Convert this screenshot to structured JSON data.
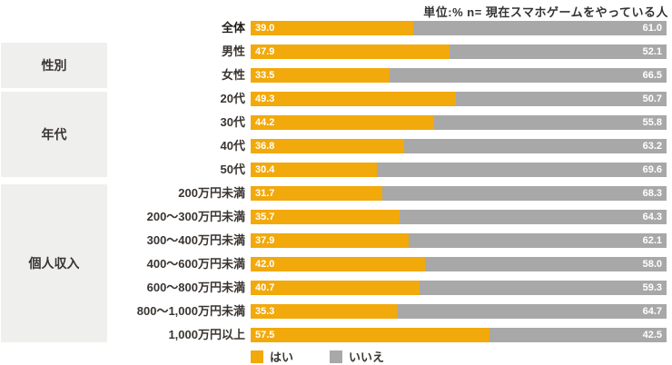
{
  "unit_note": "単位:%  n= 現在スマホゲームをやっている人",
  "legend": {
    "yes_label": "はい",
    "no_label": "いいえ"
  },
  "colors": {
    "yes": "#f2a90c",
    "no": "#a8a8a8",
    "group_box_bg": "#efefed",
    "value_text": "#ffffff"
  },
  "chart_data": {
    "type": "bar",
    "orientation": "horizontal",
    "stacked": true,
    "unit": "%",
    "title": "単位:%  n= 現在スマホゲームをやっている人",
    "xlim": [
      0,
      100
    ],
    "legend_position": "bottom",
    "grid": false,
    "series_names": [
      "はい",
      "いいえ"
    ],
    "categories": [
      "全体",
      "男性",
      "女性",
      "20代",
      "30代",
      "40代",
      "50代",
      "200万円未満",
      "200〜300万円未満",
      "300〜400万円未満",
      "400〜600万円未満",
      "600〜800万円未満",
      "800〜1,000万円未満",
      "1,000万円以上"
    ],
    "rows": [
      {
        "label": "全体",
        "yes": 39.0,
        "no": 61.0,
        "emphasis": true
      },
      {
        "label": "男性",
        "yes": 47.9,
        "no": 52.1
      },
      {
        "label": "女性",
        "yes": 33.5,
        "no": 66.5
      },
      {
        "label": "20代",
        "yes": 49.3,
        "no": 50.7
      },
      {
        "label": "30代",
        "yes": 44.2,
        "no": 55.8
      },
      {
        "label": "40代",
        "yes": 36.8,
        "no": 63.2
      },
      {
        "label": "50代",
        "yes": 30.4,
        "no": 69.6
      },
      {
        "label": "200万円未満",
        "yes": 31.7,
        "no": 68.3
      },
      {
        "label": "200〜300万円未満",
        "yes": 35.7,
        "no": 64.3
      },
      {
        "label": "300〜400万円未満",
        "yes": 37.9,
        "no": 62.1
      },
      {
        "label": "400〜600万円未満",
        "yes": 42.0,
        "no": 58.0
      },
      {
        "label": "600〜800万円未満",
        "yes": 40.7,
        "no": 59.3
      },
      {
        "label": "800〜1,000万円未満",
        "yes": 35.3,
        "no": 64.7
      },
      {
        "label": "1,000万円以上",
        "yes": 57.5,
        "no": 42.5
      }
    ],
    "groups": [
      {
        "label": "性別",
        "row_span": [
          "男性",
          "女性"
        ]
      },
      {
        "label": "年代",
        "row_span": [
          "20代",
          "50代"
        ]
      },
      {
        "label": "個人収入",
        "row_span": [
          "200万円未満",
          "1,000万円以上"
        ]
      }
    ]
  }
}
